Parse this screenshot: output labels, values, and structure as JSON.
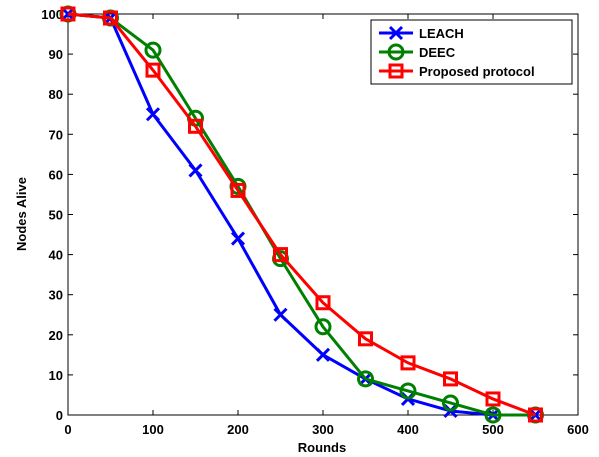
{
  "chart_data": {
    "type": "line",
    "title": "",
    "xlabel": "Rounds",
    "ylabel": "Nodes Alive",
    "xlim": [
      0,
      600
    ],
    "ylim": [
      0,
      100
    ],
    "xticks": [
      0,
      100,
      200,
      300,
      400,
      500,
      600
    ],
    "yticks": [
      0,
      10,
      20,
      30,
      40,
      50,
      60,
      70,
      80,
      90,
      100
    ],
    "grid": false,
    "legend_position": "top-right",
    "x": [
      0,
      50,
      100,
      150,
      200,
      250,
      300,
      350,
      400,
      450,
      500,
      550
    ],
    "series": [
      {
        "name": "LEACH",
        "color": "#0000ff",
        "marker": "x",
        "values": [
          100,
          99,
          75,
          61,
          44,
          25,
          15,
          9,
          4,
          1,
          0,
          0
        ]
      },
      {
        "name": "DEEC",
        "color": "#008000",
        "marker": "circle",
        "values": [
          100,
          99,
          91,
          74,
          57,
          39,
          22,
          9,
          6,
          3,
          0,
          0
        ]
      },
      {
        "name": "Proposed protocol",
        "color": "#ff0000",
        "marker": "square",
        "values": [
          100,
          99,
          86,
          72,
          56,
          40,
          28,
          19,
          13,
          9,
          4,
          0
        ]
      }
    ]
  }
}
